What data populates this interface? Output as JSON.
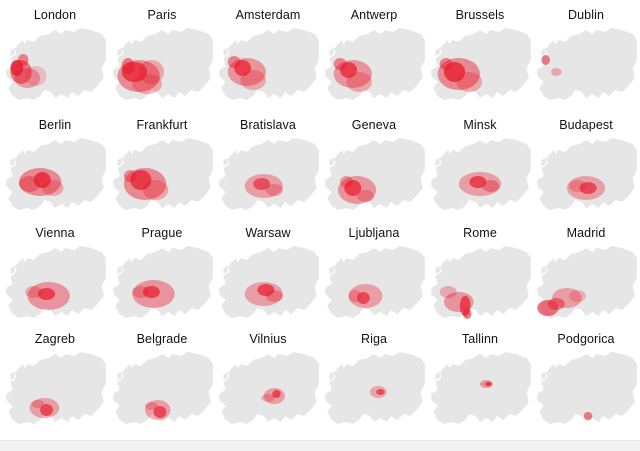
{
  "colors": {
    "land": "#e6e6e6",
    "coast": "#f5f5f5",
    "accent": "#e8192c"
  },
  "cities": [
    {
      "name": "London",
      "spread": "wide-west"
    },
    {
      "name": "Paris",
      "spread": "very-wide"
    },
    {
      "name": "Amsterdam",
      "spread": "wide"
    },
    {
      "name": "Antwerp",
      "spread": "wide"
    },
    {
      "name": "Brussels",
      "spread": "very-wide"
    },
    {
      "name": "Dublin",
      "spread": "minimal"
    },
    {
      "name": "Berlin",
      "spread": "wide"
    },
    {
      "name": "Frankfurt",
      "spread": "very-wide"
    },
    {
      "name": "Bratislava",
      "spread": "medium"
    },
    {
      "name": "Geneva",
      "spread": "wide"
    },
    {
      "name": "Minsk",
      "spread": "medium"
    },
    {
      "name": "Budapest",
      "spread": "medium"
    },
    {
      "name": "Vienna",
      "spread": "wide"
    },
    {
      "name": "Prague",
      "spread": "wide"
    },
    {
      "name": "Warsaw",
      "spread": "medium"
    },
    {
      "name": "Ljubljana",
      "spread": "medium"
    },
    {
      "name": "Rome",
      "spread": "italy"
    },
    {
      "name": "Madrid",
      "spread": "iberia"
    },
    {
      "name": "Zagreb",
      "spread": "narrow"
    },
    {
      "name": "Belgrade",
      "spread": "narrow"
    },
    {
      "name": "Vilnius",
      "spread": "narrow"
    },
    {
      "name": "Riga",
      "spread": "small"
    },
    {
      "name": "Tallinn",
      "spread": "small"
    },
    {
      "name": "Podgorica",
      "spread": "minimal"
    }
  ]
}
